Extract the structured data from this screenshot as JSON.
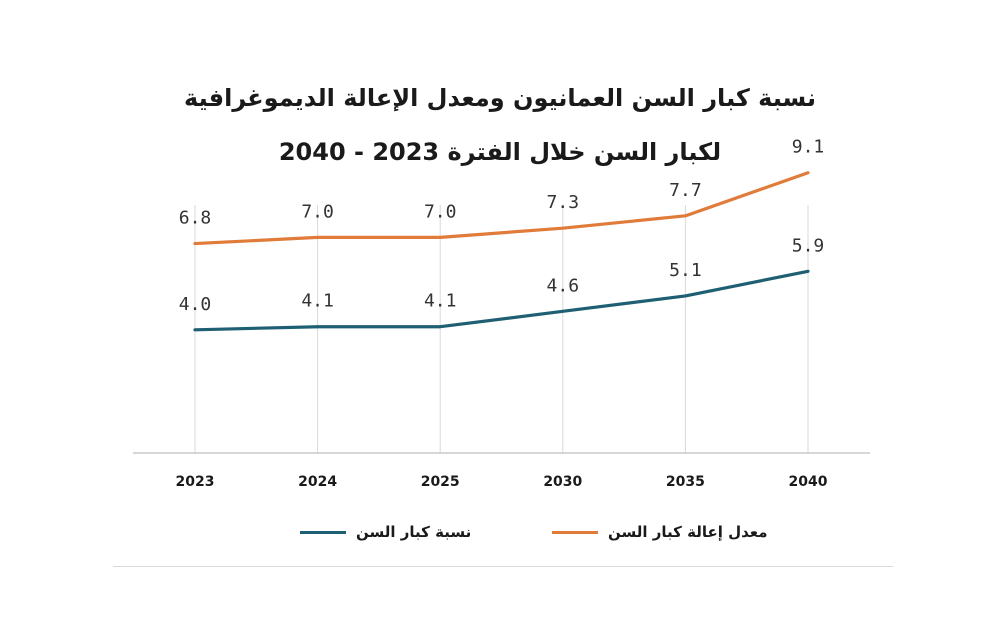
{
  "chart_data": {
    "type": "line",
    "title": "نسبة كبار السن العمانيون ومعدل الإعالة الديموغرافية",
    "subtitle": "لكبار السن خلال الفترة 2023 - 2040",
    "categories": [
      "2023",
      "2024",
      "2025",
      "2030",
      "2035",
      "2040"
    ],
    "series": [
      {
        "name": "نسبة كبار السن",
        "color": "#1f5f73",
        "values": [
          4.0,
          4.1,
          4.1,
          4.6,
          5.1,
          5.9
        ]
      },
      {
        "name": "معدل إعالة كبار السن",
        "color": "#e07b39",
        "values": [
          6.8,
          7.0,
          7.0,
          7.3,
          7.7,
          9.1
        ]
      }
    ],
    "ylim": [
      0,
      10
    ],
    "grid": "vertical",
    "legend": "bottom",
    "xlabel": "",
    "ylabel": ""
  }
}
